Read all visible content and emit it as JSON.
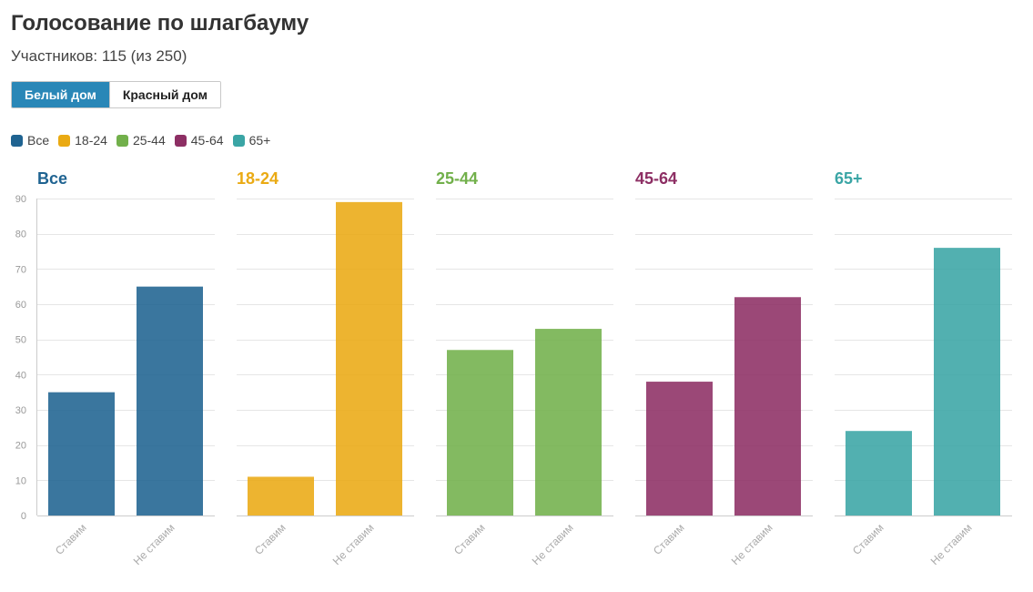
{
  "header": {
    "title": "Голосование по шлагбауму",
    "subtitle": "Участников: 115 (из 250)"
  },
  "toggle": {
    "options": [
      "Белый дом",
      "Красный дом"
    ],
    "active_index": 0
  },
  "legend": [
    {
      "label": "Все",
      "color": "#1f6391"
    },
    {
      "label": "18-24",
      "color": "#eaaa13"
    },
    {
      "label": "25-44",
      "color": "#72b04b"
    },
    {
      "label": "45-64",
      "color": "#8d2f64"
    },
    {
      "label": "65+",
      "color": "#3aa5a5"
    }
  ],
  "chart_data": {
    "type": "bar",
    "categories": [
      "Ставим",
      "Не ставим"
    ],
    "ylim": [
      0,
      90
    ],
    "yticks": [
      0,
      10,
      20,
      30,
      40,
      50,
      60,
      70,
      80,
      90
    ],
    "grid": true,
    "panels": [
      {
        "title": "Все",
        "color": "#1f6391",
        "values": [
          35,
          65
        ]
      },
      {
        "title": "18-24",
        "color": "#eaaa13",
        "values": [
          11,
          89
        ]
      },
      {
        "title": "25-44",
        "color": "#72b04b",
        "values": [
          47,
          53
        ]
      },
      {
        "title": "45-64",
        "color": "#8d2f64",
        "values": [
          38,
          62
        ]
      },
      {
        "title": "65+",
        "color": "#3aa5a5",
        "values": [
          24,
          76
        ]
      }
    ]
  }
}
